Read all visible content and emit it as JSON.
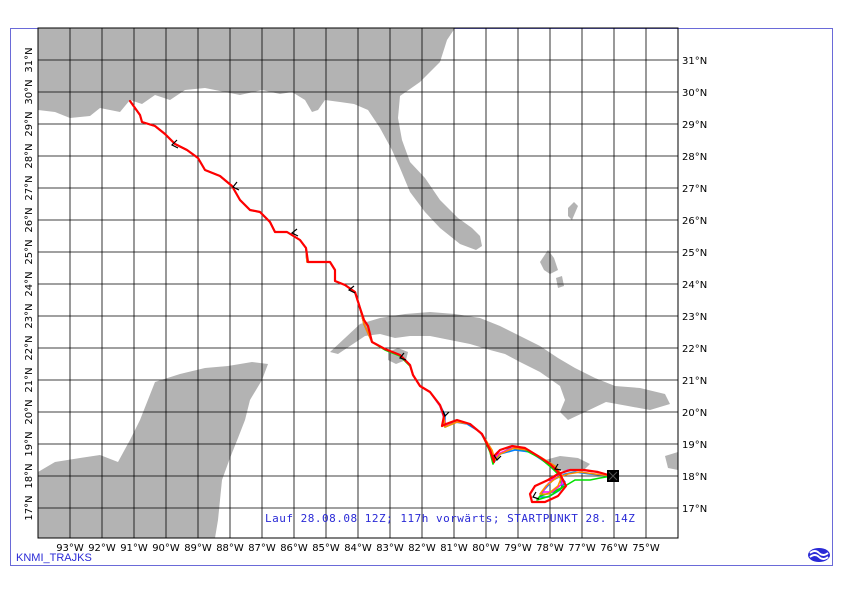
{
  "map": {
    "lon_labels": [
      "93°W",
      "92°W",
      "91°W",
      "90°W",
      "89°W",
      "88°W",
      "87°W",
      "86°W",
      "85°W",
      "84°W",
      "83°W",
      "82°W",
      "81°W",
      "80°W",
      "79°W",
      "78°W",
      "77°W",
      "76°W",
      "75°W"
    ],
    "lat_labels_right": [
      "31°N",
      "30°N",
      "29°N",
      "28°N",
      "27°N",
      "26°N",
      "25°N",
      "24°N",
      "23°N",
      "22°N",
      "21°N",
      "20°N",
      "19°N",
      "18°N",
      "17°N"
    ],
    "lat_labels_left": [
      "31°N",
      "30°N",
      "29°N",
      "28°N",
      "27°N",
      "26°N",
      "25°N",
      "24°N",
      "23°N",
      "22°N",
      "21°N",
      "20°N",
      "19°N",
      "18°N",
      "17°N"
    ],
    "land_color": "#b3b3b3",
    "grid_color": "#000000",
    "trajectory_colors": [
      "#0080ff",
      "#00e000",
      "#ff00ff",
      "#ff8c00",
      "#ff0000"
    ],
    "start_marker_icon": "start-point-square-icon"
  },
  "run_info": "Lauf 28.08.08 12Z; 117h vorwärts; STARTPUNKT 28. 14Z",
  "footer_label": "KNMI_TRAJKS",
  "logo_icon": "knmi-logo-icon"
}
